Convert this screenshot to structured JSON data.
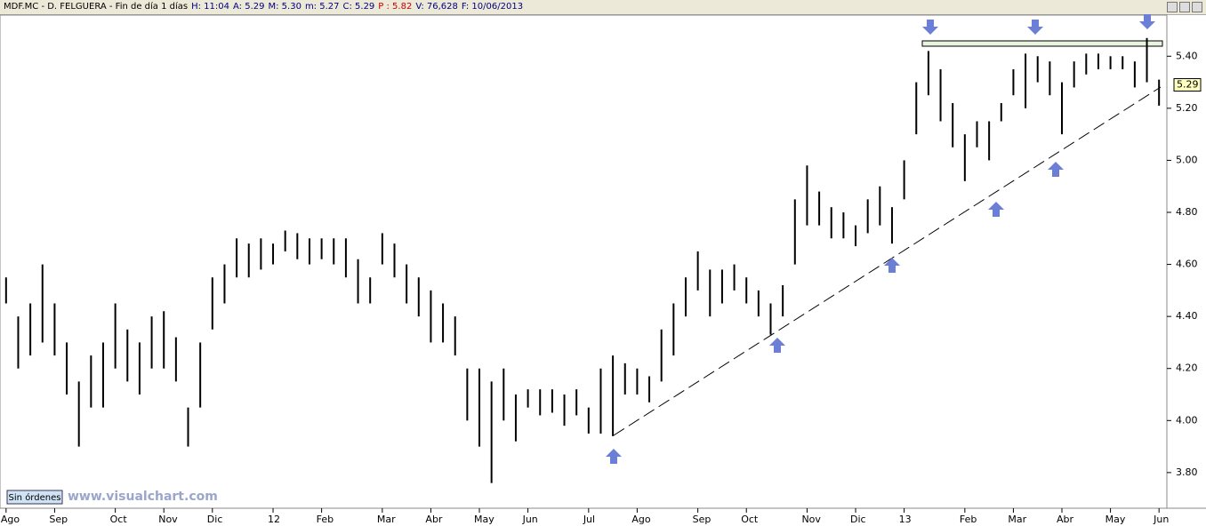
{
  "header": {
    "items": [
      {
        "text": "MDF.MC - D. FELGUERA - Fin de día 1 días",
        "color": "#000000"
      },
      {
        "text": "H: 11:04",
        "color": "#000080"
      },
      {
        "text": "A: 5.29",
        "color": "#000080"
      },
      {
        "text": "M: 5.30",
        "color": "#000080"
      },
      {
        "text": "m: 5.27",
        "color": "#000080"
      },
      {
        "text": "C: 5.29",
        "color": "#000080"
      },
      {
        "text": "P : 5.82",
        "color": "#cc0000"
      },
      {
        "text": "V: 76,628",
        "color": "#000080"
      },
      {
        "text": "F: 10/06/2013",
        "color": "#000080"
      }
    ]
  },
  "footer": {
    "status": "Sin órdenes",
    "watermark": "www.visualchart.com"
  },
  "chart_data": {
    "type": "range_bar",
    "color": "#000000",
    "last_price_label": "5.29",
    "categories": [
      "Ago",
      null,
      null,
      null,
      "Sep",
      null,
      null,
      null,
      null,
      "Oct",
      null,
      null,
      null,
      "Nov",
      null,
      null,
      null,
      "Dic",
      null,
      null,
      null,
      null,
      "12",
      null,
      null,
      null,
      "Feb",
      null,
      null,
      null,
      null,
      "Mar",
      null,
      null,
      null,
      "Abr",
      null,
      null,
      null,
      "May",
      null,
      null,
      null,
      "Jun",
      null,
      null,
      null,
      null,
      "Jul",
      null,
      null,
      null,
      "Ago",
      null,
      null,
      null,
      null,
      "Sep",
      null,
      null,
      null,
      "Oct",
      null,
      null,
      null,
      null,
      "Nov",
      null,
      null,
      null,
      "Dic",
      null,
      null,
      null,
      "13",
      null,
      null,
      null,
      null,
      "Feb",
      null,
      null,
      null,
      "Mar",
      null,
      null,
      null,
      "Abr",
      null,
      null,
      null,
      "May",
      null,
      null,
      null,
      "Jun"
    ],
    "high": [
      4.55,
      4.4,
      4.45,
      4.6,
      4.45,
      4.3,
      4.15,
      4.25,
      4.3,
      4.45,
      4.35,
      4.3,
      4.4,
      4.42,
      4.32,
      4.05,
      4.3,
      4.55,
      4.6,
      4.7,
      4.68,
      4.7,
      4.68,
      4.73,
      4.72,
      4.7,
      4.7,
      4.7,
      4.7,
      4.62,
      4.55,
      4.72,
      4.68,
      4.6,
      4.55,
      4.5,
      4.45,
      4.4,
      4.2,
      4.2,
      4.15,
      4.2,
      4.1,
      4.12,
      4.12,
      4.12,
      4.1,
      4.12,
      4.05,
      4.2,
      4.25,
      4.22,
      4.2,
      4.17,
      4.35,
      4.45,
      4.55,
      4.65,
      4.58,
      4.58,
      4.6,
      4.55,
      4.5,
      4.45,
      4.52,
      4.85,
      4.98,
      4.88,
      4.82,
      4.8,
      4.75,
      4.85,
      4.9,
      4.82,
      5.0,
      5.3,
      5.42,
      5.35,
      5.22,
      5.1,
      5.15,
      5.15,
      5.22,
      5.35,
      5.41,
      5.4,
      5.38,
      5.3,
      5.38,
      5.41,
      5.41,
      5.4,
      5.4,
      5.38,
      5.47,
      5.31
    ],
    "low": [
      4.45,
      4.2,
      4.25,
      4.3,
      4.25,
      4.1,
      3.9,
      4.05,
      4.05,
      4.2,
      4.15,
      4.1,
      4.2,
      4.2,
      4.15,
      3.9,
      4.05,
      4.35,
      4.45,
      4.55,
      4.55,
      4.58,
      4.6,
      4.65,
      4.62,
      4.6,
      4.62,
      4.6,
      4.55,
      4.45,
      4.45,
      4.6,
      4.55,
      4.45,
      4.4,
      4.3,
      4.3,
      4.25,
      4.0,
      3.9,
      3.76,
      4.0,
      3.92,
      4.05,
      4.02,
      4.03,
      3.98,
      4.02,
      3.95,
      3.95,
      3.94,
      4.1,
      4.1,
      4.07,
      4.15,
      4.25,
      4.4,
      4.5,
      4.4,
      4.45,
      4.5,
      4.45,
      4.4,
      4.33,
      4.4,
      4.6,
      4.75,
      4.75,
      4.7,
      4.7,
      4.67,
      4.72,
      4.75,
      4.68,
      4.85,
      5.1,
      5.25,
      5.15,
      5.05,
      4.92,
      5.05,
      5.0,
      5.15,
      5.25,
      5.2,
      5.3,
      5.25,
      5.1,
      5.28,
      5.33,
      5.35,
      5.35,
      5.35,
      5.28,
      5.3,
      5.21
    ],
    "ylim": [
      3.663,
      5.558
    ],
    "yticks": [
      {
        "value": 3.8,
        "label": "3.80"
      },
      {
        "value": 4.0,
        "label": "4.00"
      },
      {
        "value": 4.2,
        "label": "4.20"
      },
      {
        "value": 4.4,
        "label": "4.40"
      },
      {
        "value": 4.6,
        "label": "4.60"
      },
      {
        "value": 4.8,
        "label": "4.80"
      },
      {
        "value": 5.0,
        "label": "5.00"
      },
      {
        "value": 5.2,
        "label": "5.20"
      },
      {
        "value": 5.4,
        "label": "5.40"
      }
    ],
    "last_price": 5.29
  }
}
